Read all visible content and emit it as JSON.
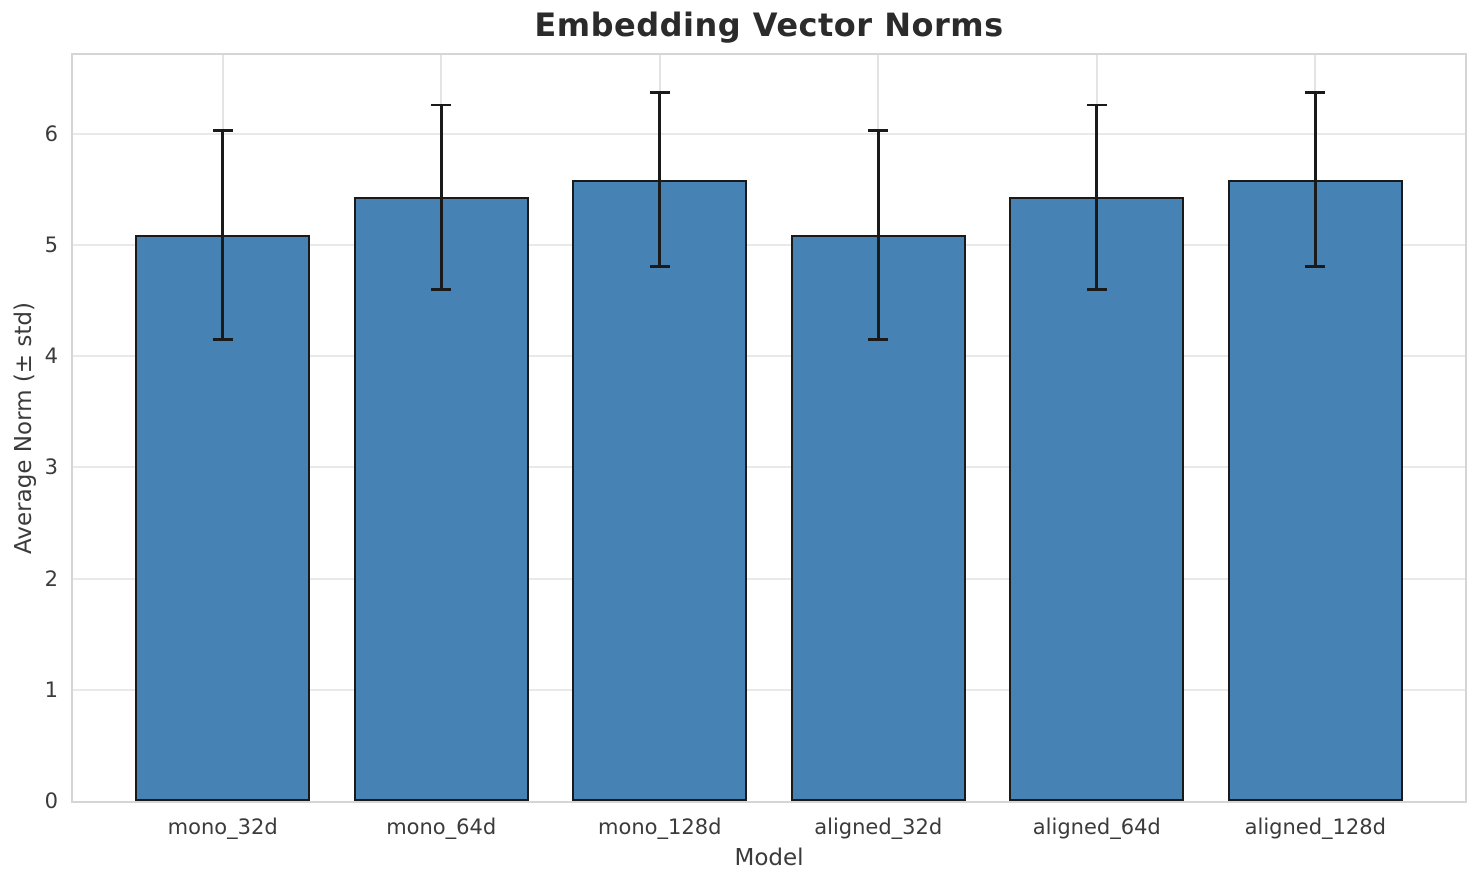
{
  "chart_data": {
    "type": "bar",
    "title": "Embedding Vector Norms",
    "xlabel": "Model",
    "ylabel": "Average Norm (± std)",
    "categories": [
      "mono_32d",
      "mono_64d",
      "mono_128d",
      "aligned_32d",
      "aligned_64d",
      "aligned_128d"
    ],
    "values": [
      5.09,
      5.43,
      5.59,
      5.09,
      5.43,
      5.59
    ],
    "errors": [
      0.94,
      0.83,
      0.78,
      0.94,
      0.83,
      0.78
    ],
    "yticks": [
      0,
      1,
      2,
      3,
      4,
      5,
      6
    ],
    "ylim": [
      0,
      6.71
    ],
    "grid": true,
    "legend": false,
    "bar_color": "#4682b4",
    "bar_edge_color": "#1a1a1a",
    "error_color": "#1a1a1a"
  },
  "style_colors": {
    "background": "#ffffff",
    "grid_h": "#e9e9e9",
    "grid_v": "#e4e4e4",
    "spine": "#d5d5d5",
    "title_text": "#2b2b2b",
    "tick_text": "#3b3b3b"
  }
}
